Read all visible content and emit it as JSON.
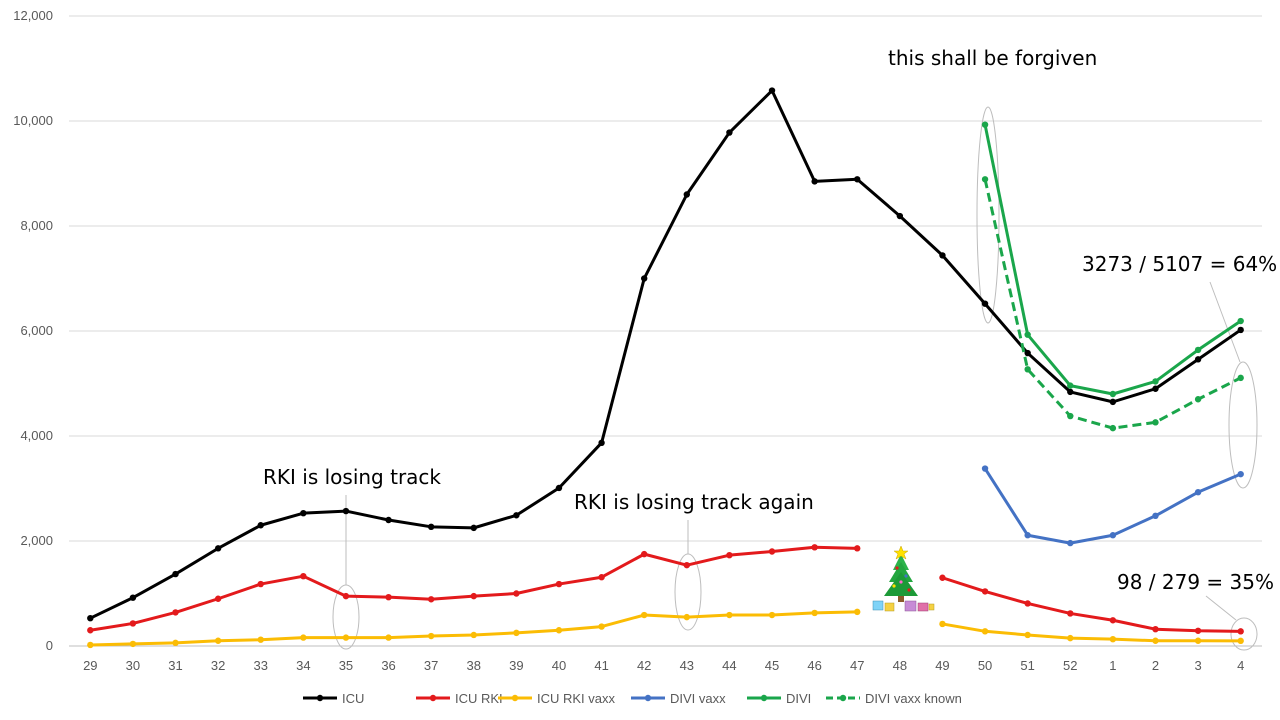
{
  "chart_data": {
    "type": "line",
    "title": "",
    "xlabel": "",
    "ylabel": "",
    "ylim": [
      0,
      12000
    ],
    "yticks": [
      0,
      2000,
      4000,
      6000,
      8000,
      10000,
      12000
    ],
    "ytick_labels": [
      "0",
      "2,000",
      "4,000",
      "6,000",
      "8,000",
      "10,000",
      "12,000"
    ],
    "grid": "horizontal",
    "legend_position": "bottom",
    "categories": [
      "29",
      "30",
      "31",
      "32",
      "33",
      "34",
      "35",
      "36",
      "37",
      "38",
      "39",
      "40",
      "41",
      "42",
      "43",
      "44",
      "45",
      "46",
      "47",
      "48",
      "49",
      "50",
      "51",
      "52",
      "1",
      "2",
      "3",
      "4"
    ],
    "series": [
      {
        "name": "ICU",
        "color": "#000000",
        "dashed": false,
        "values": [
          530,
          920,
          1370,
          1860,
          2300,
          2530,
          2570,
          2400,
          2270,
          2250,
          2490,
          3010,
          3870,
          7000,
          8600,
          9780,
          10580,
          8850,
          8890,
          8190,
          7440,
          6520,
          5580,
          4840,
          4650,
          4900,
          5460,
          6020
        ]
      },
      {
        "name": "ICU RKI",
        "color": "#e31a1c",
        "dashed": false,
        "values": [
          300,
          430,
          640,
          900,
          1180,
          1330,
          950,
          930,
          890,
          950,
          1000,
          1180,
          1310,
          1750,
          1540,
          1730,
          1800,
          1880,
          1860,
          null,
          1300,
          1040,
          810,
          620,
          490,
          320,
          290,
          279
        ]
      },
      {
        "name": "ICU RKI vaxx",
        "color": "#fbbc04",
        "dashed": false,
        "values": [
          20,
          40,
          60,
          100,
          120,
          160,
          160,
          160,
          190,
          210,
          250,
          300,
          370,
          590,
          550,
          590,
          590,
          630,
          650,
          null,
          420,
          280,
          210,
          150,
          130,
          100,
          100,
          98
        ]
      },
      {
        "name": "DIVI vaxx",
        "color": "#4472c4",
        "dashed": false,
        "values": [
          null,
          null,
          null,
          null,
          null,
          null,
          null,
          null,
          null,
          null,
          null,
          null,
          null,
          null,
          null,
          null,
          null,
          null,
          null,
          null,
          null,
          3380,
          2110,
          1960,
          2110,
          2480,
          2930,
          3273
        ]
      },
      {
        "name": "DIVI",
        "color": "#1aa64b",
        "dashed": false,
        "values": [
          null,
          null,
          null,
          null,
          null,
          null,
          null,
          null,
          null,
          null,
          null,
          null,
          null,
          null,
          null,
          null,
          null,
          null,
          null,
          null,
          null,
          9930,
          5930,
          4960,
          4800,
          5040,
          5640,
          6190
        ]
      },
      {
        "name": "DIVI vaxx known",
        "color": "#1aa64b",
        "dashed": true,
        "values": [
          null,
          null,
          null,
          null,
          null,
          null,
          null,
          null,
          null,
          null,
          null,
          null,
          null,
          null,
          null,
          null,
          null,
          null,
          null,
          null,
          null,
          8890,
          5270,
          4380,
          4150,
          4260,
          4700,
          5107
        ]
      }
    ],
    "annotations": [
      {
        "text": "this shall be forgiven"
      },
      {
        "text": "3273 / 5107 = 64%"
      },
      {
        "text": "RKI is losing track"
      },
      {
        "text": "RKI is losing track again"
      },
      {
        "text": "98 / 279 = 35%"
      }
    ],
    "icons": [
      "christmas-tree-icon"
    ]
  }
}
